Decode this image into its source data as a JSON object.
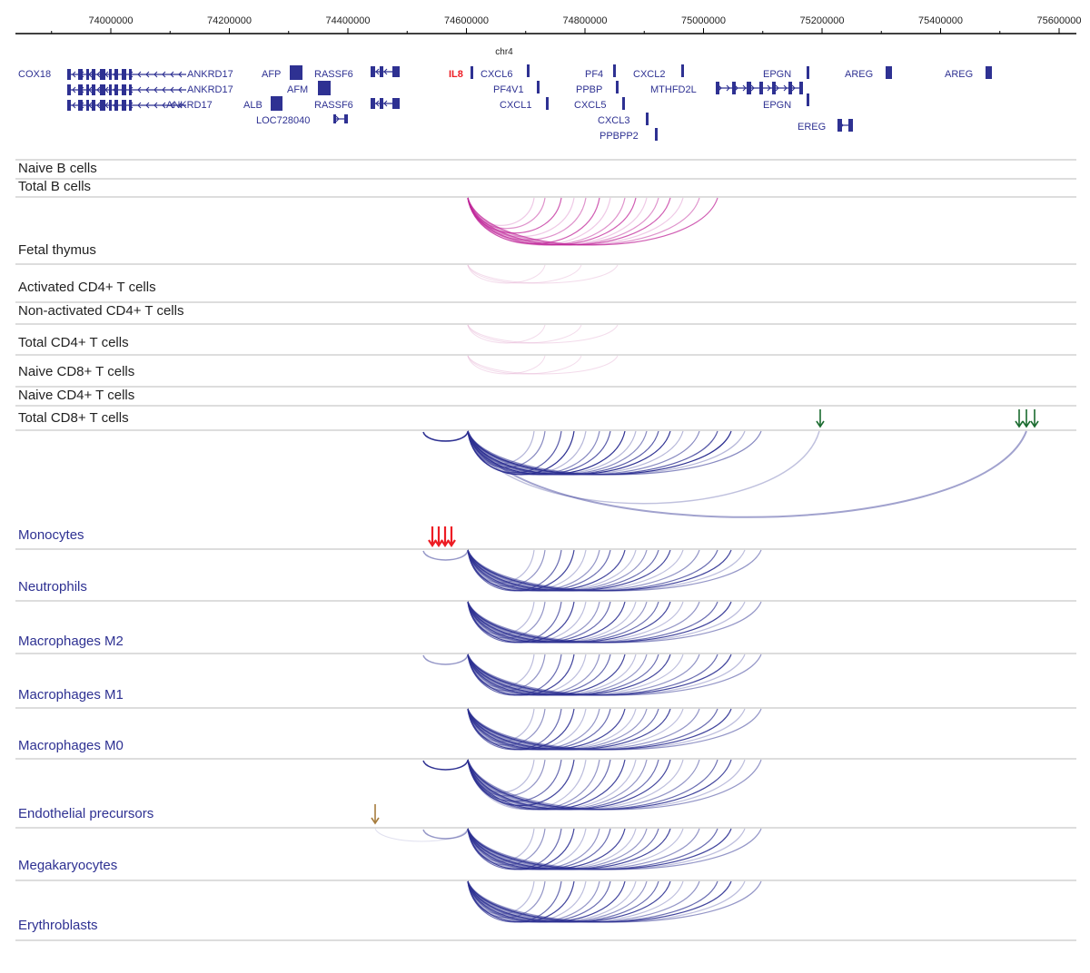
{
  "colors": {
    "gene": "#2e3192",
    "highlight_gene": "#ed1c24",
    "fetal_arc": "#c0279a",
    "tcell_arc": "#e8b7d8",
    "myeloid_arc": "#2e3192",
    "green_arrow": "#1a6b2f",
    "red_arrow": "#ed1c24",
    "brown_arrow": "#a67c3d",
    "label_dark": "#222222",
    "label_blue": "#2e3192"
  },
  "axis": {
    "chromosome": "chr4",
    "ticks": [
      "74000000",
      "74200000",
      "74400000",
      "74600000",
      "74800000",
      "75000000",
      "75200000",
      "75400000",
      "75600000"
    ]
  },
  "genes": [
    {
      "name": "COX18",
      "highlight": false
    },
    {
      "name": "ANKRD17",
      "highlight": false
    },
    {
      "name": "ANKRD17",
      "highlight": false
    },
    {
      "name": "ANKRD17",
      "highlight": false
    },
    {
      "name": "AFP",
      "highlight": false
    },
    {
      "name": "AFM",
      "highlight": false
    },
    {
      "name": "ALB",
      "highlight": false
    },
    {
      "name": "LOC728040",
      "highlight": false
    },
    {
      "name": "RASSF6",
      "highlight": false
    },
    {
      "name": "RASSF6",
      "highlight": false
    },
    {
      "name": "IL8",
      "highlight": true
    },
    {
      "name": "CXCL6",
      "highlight": false
    },
    {
      "name": "PF4V1",
      "highlight": false
    },
    {
      "name": "CXCL1",
      "highlight": false
    },
    {
      "name": "PF4",
      "highlight": false
    },
    {
      "name": "PPBP",
      "highlight": false
    },
    {
      "name": "CXCL5",
      "highlight": false
    },
    {
      "name": "CXCL3",
      "highlight": false
    },
    {
      "name": "PPBPP2",
      "highlight": false
    },
    {
      "name": "CXCL2",
      "highlight": false
    },
    {
      "name": "MTHFD2L",
      "highlight": false
    },
    {
      "name": "EPGN",
      "highlight": false
    },
    {
      "name": "EPGN",
      "highlight": false
    },
    {
      "name": "EREG",
      "highlight": false
    },
    {
      "name": "AREG",
      "highlight": false
    },
    {
      "name": "AREG",
      "highlight": false
    }
  ],
  "tracks": [
    {
      "label": "Naive B cells",
      "group": "lymphoid",
      "arcs": "none"
    },
    {
      "label": "Total B cells",
      "group": "lymphoid",
      "arcs": "none"
    },
    {
      "label": "Fetal thymus",
      "group": "lymphoid",
      "arcs": "fetal"
    },
    {
      "label": "Activated CD4+ T cells",
      "group": "lymphoid",
      "arcs": "faint"
    },
    {
      "label": "Non-activated CD4+ T cells",
      "group": "lymphoid",
      "arcs": "none"
    },
    {
      "label": "Total CD4+ T cells",
      "group": "lymphoid",
      "arcs": "faint"
    },
    {
      "label": "Naive CD8+ T cells",
      "group": "lymphoid",
      "arcs": "faint"
    },
    {
      "label": "Naive CD4+ T cells",
      "group": "lymphoid",
      "arcs": "none"
    },
    {
      "label": "Total CD8+ T cells",
      "group": "lymphoid",
      "arcs": "none"
    },
    {
      "label": "Monocytes",
      "group": "myeloid",
      "arcs": "monocytes"
    },
    {
      "label": "Neutrophils",
      "group": "myeloid",
      "arcs": "dense"
    },
    {
      "label": "Macrophages M2",
      "group": "myeloid",
      "arcs": "dense"
    },
    {
      "label": "Macrophages M1",
      "group": "myeloid",
      "arcs": "dense"
    },
    {
      "label": "Macrophages M0",
      "group": "myeloid",
      "arcs": "dense"
    },
    {
      "label": "Endothelial precursors",
      "group": "myeloid",
      "arcs": "dense"
    },
    {
      "label": "Megakaryocytes",
      "group": "myeloid",
      "arcs": "dense"
    },
    {
      "label": "Erythroblasts",
      "group": "myeloid",
      "arcs": "dense"
    }
  ]
}
